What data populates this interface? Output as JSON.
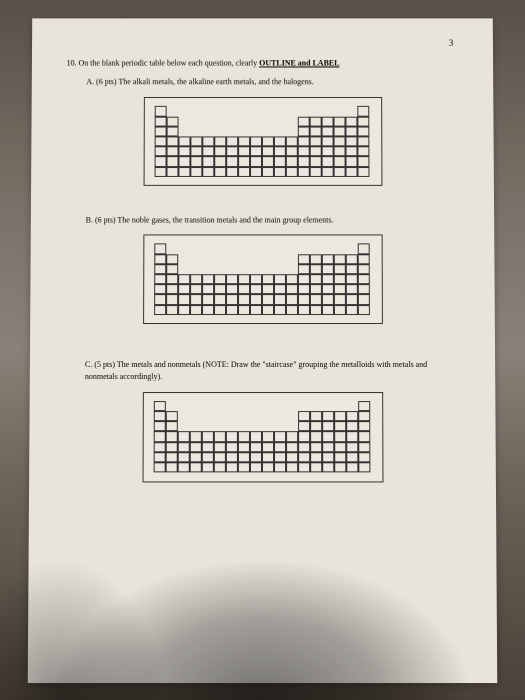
{
  "page_number": "3",
  "question": {
    "number": "10.",
    "text_before": "On the blank periodic table below each question, clearly ",
    "text_underlined": "OUTLINE and LABEL",
    "parts": {
      "a": {
        "label": "A.",
        "points": "(6 pts)",
        "text": "The alkali metals, the alkaline earth metals, and the halogens."
      },
      "b": {
        "label": "B.",
        "points": "(6 pts)",
        "text": "The noble gases, the transition metals and the main group elements."
      },
      "c": {
        "label": "C.",
        "points": "(5 pts)",
        "text": "The metals and nonmetals (NOTE: Draw the \"staircase\" grouping the metalloids with metals and nonmetals accordingly)."
      }
    }
  },
  "periodic_table": {
    "cell_size": 12,
    "rows": 7,
    "cols": 18,
    "layout": [
      [
        1,
        0,
        0,
        0,
        0,
        0,
        0,
        0,
        0,
        0,
        0,
        0,
        0,
        0,
        0,
        0,
        0,
        1
      ],
      [
        1,
        1,
        0,
        0,
        0,
        0,
        0,
        0,
        0,
        0,
        0,
        0,
        1,
        1,
        1,
        1,
        1,
        1
      ],
      [
        1,
        1,
        0,
        0,
        0,
        0,
        0,
        0,
        0,
        0,
        0,
        0,
        1,
        1,
        1,
        1,
        1,
        1
      ],
      [
        1,
        1,
        1,
        1,
        1,
        1,
        1,
        1,
        1,
        1,
        1,
        1,
        1,
        1,
        1,
        1,
        1,
        1
      ],
      [
        1,
        1,
        1,
        1,
        1,
        1,
        1,
        1,
        1,
        1,
        1,
        1,
        1,
        1,
        1,
        1,
        1,
        1
      ],
      [
        1,
        1,
        1,
        1,
        1,
        1,
        1,
        1,
        1,
        1,
        1,
        1,
        1,
        1,
        1,
        1,
        1,
        1
      ],
      [
        1,
        1,
        1,
        1,
        1,
        1,
        1,
        1,
        1,
        1,
        1,
        1,
        1,
        1,
        1,
        1,
        1,
        1
      ]
    ],
    "border_color": "#333333",
    "background_color": "#ece8e0"
  }
}
